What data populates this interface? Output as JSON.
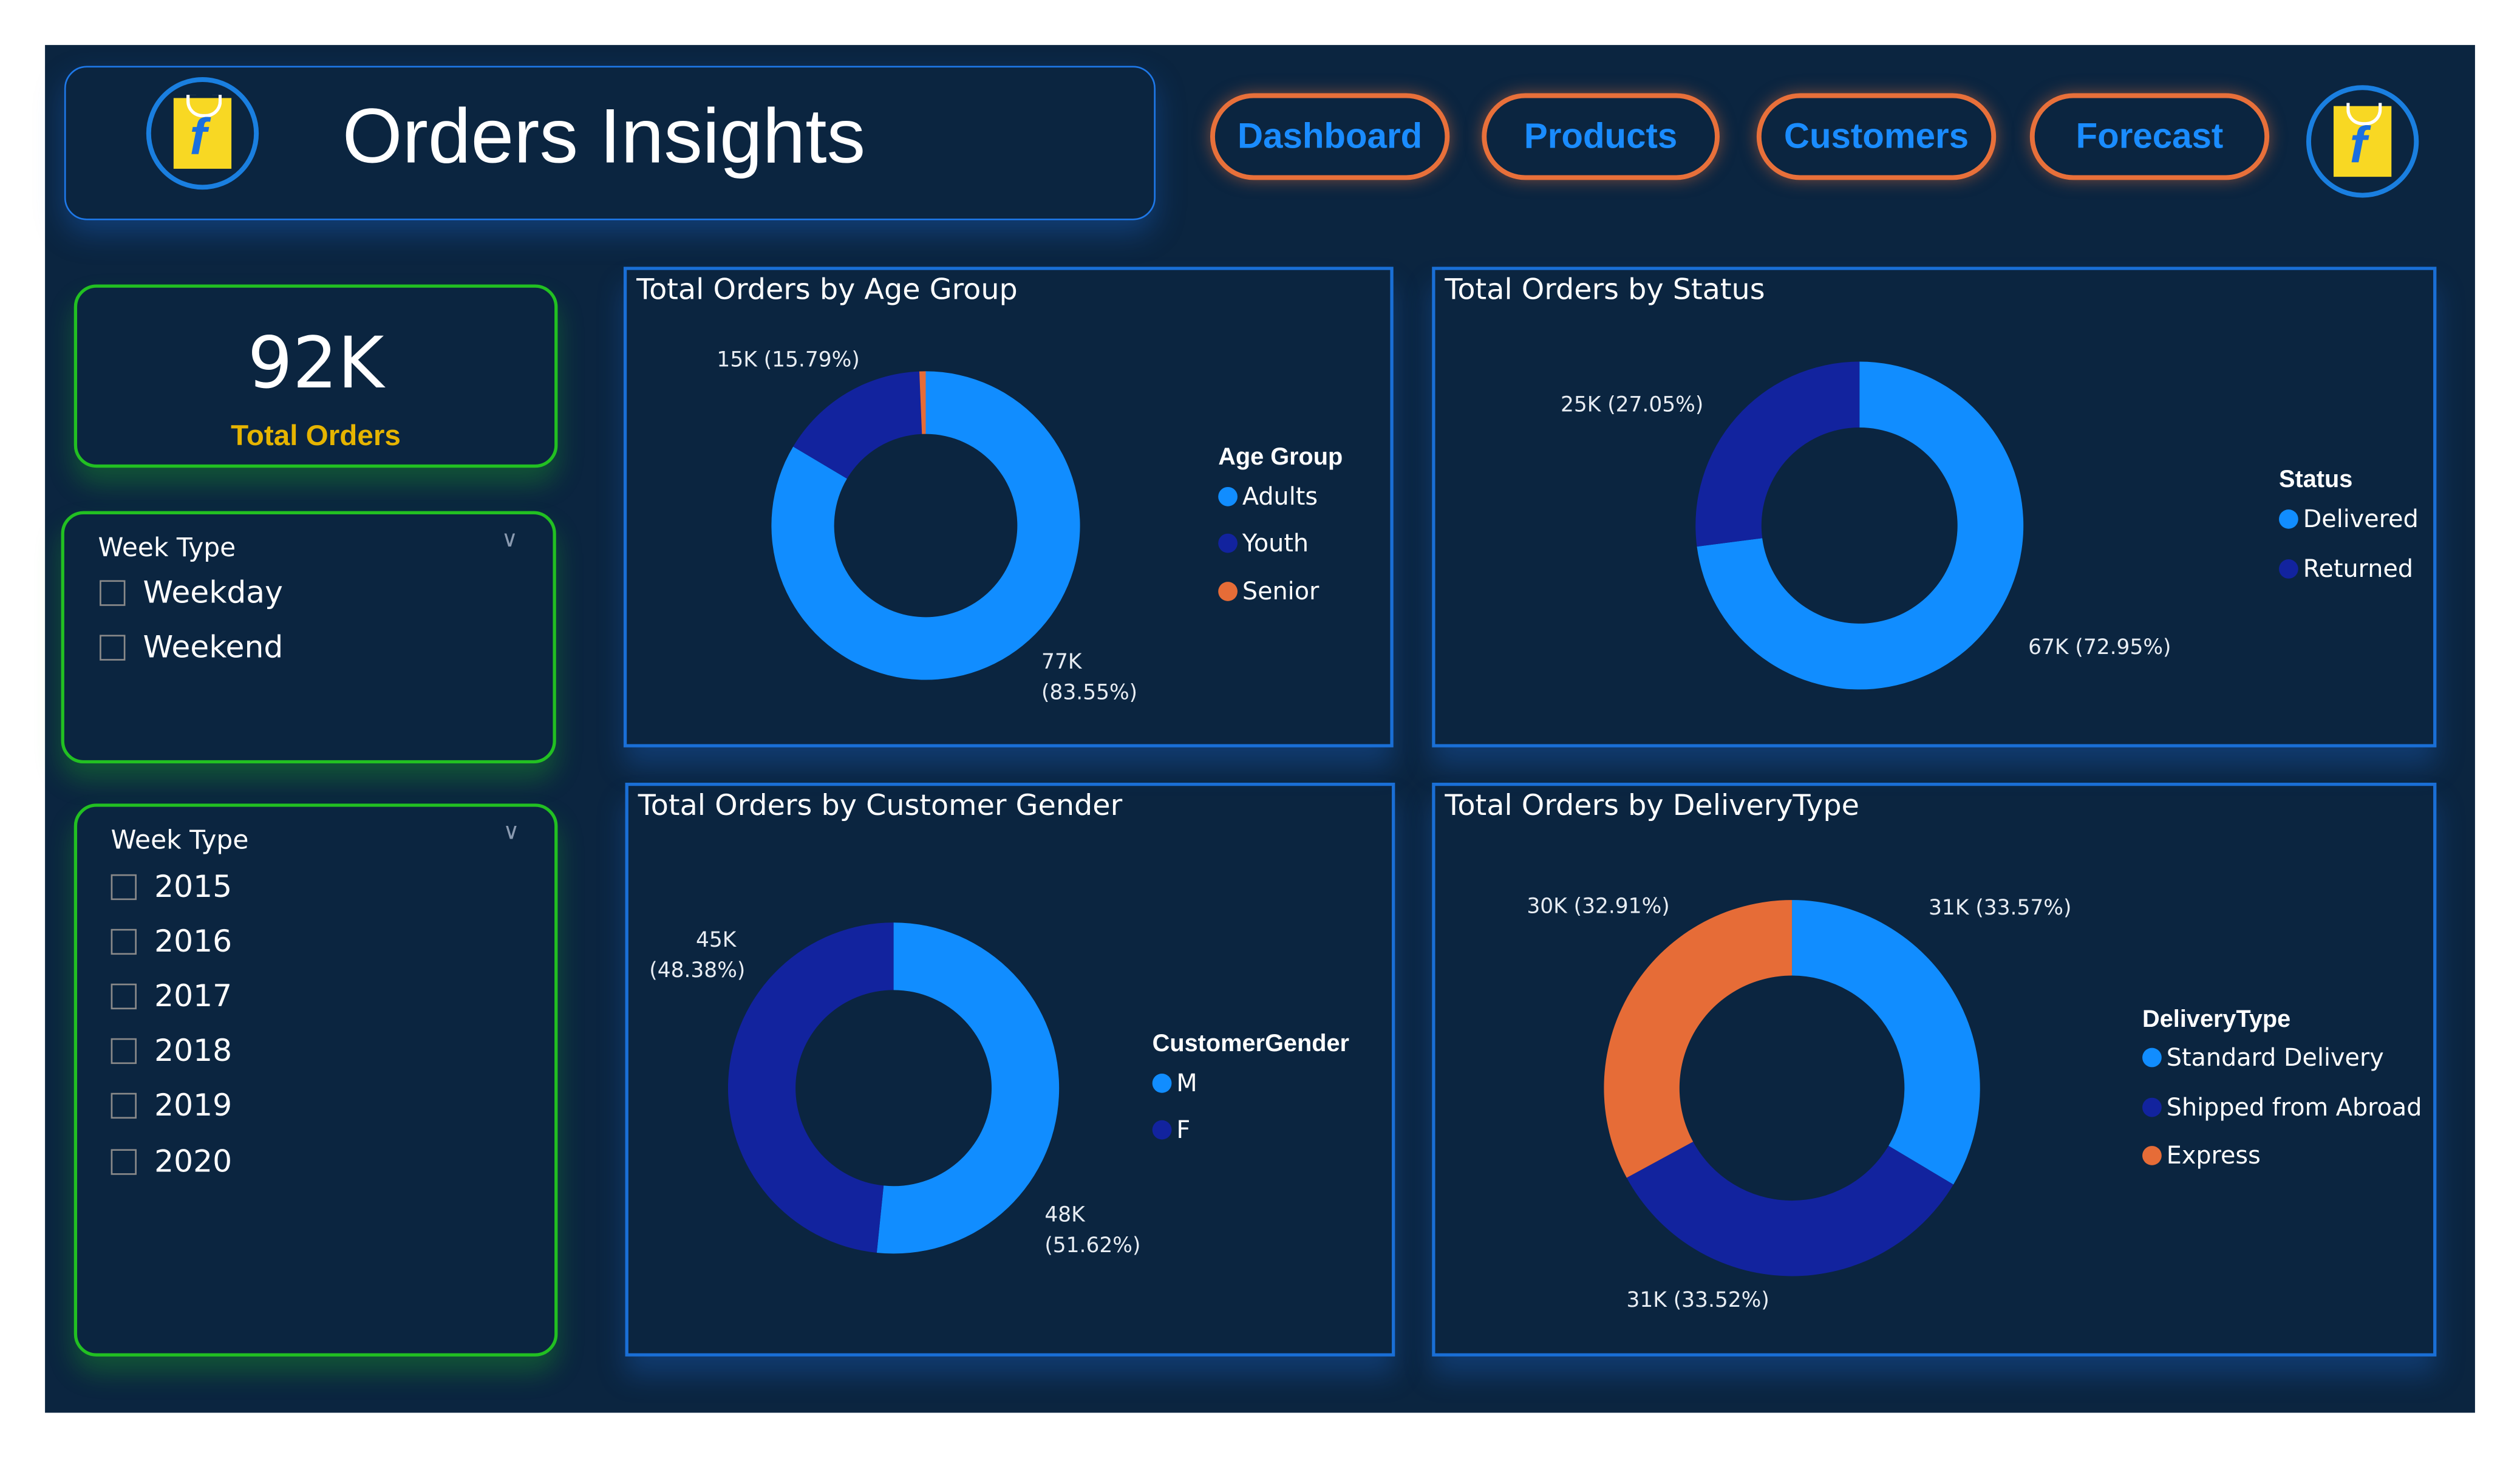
{
  "header": {
    "title": "Orders Insights",
    "logo": "flipkart-logo"
  },
  "nav": [
    {
      "label": "Dashboard"
    },
    {
      "label": "Products"
    },
    {
      "label": "Customers"
    },
    {
      "label": "Forecast"
    }
  ],
  "kpi": {
    "value": "92K",
    "label": "Total Orders"
  },
  "slicer_week": {
    "title": "Week Type",
    "items": [
      "Weekday",
      "Weekend"
    ]
  },
  "slicer_year": {
    "title": "Week Type",
    "items": [
      "2015",
      "2016",
      "2017",
      "2018",
      "2019",
      "2020"
    ]
  },
  "colors": {
    "blue": "#118dff",
    "navy": "#12239e",
    "orange": "#e66c37",
    "panel_bg": "#0b2540",
    "accent_green": "#22c022",
    "nav_border": "#e8703a",
    "kpi_label": "#e6b400"
  },
  "chart_data": [
    {
      "type": "pie",
      "title": "Total Orders by Age Group",
      "legend_title": "Age Group",
      "legend": "right",
      "categories": [
        "Adults",
        "Youth",
        "Senior"
      ],
      "values": [
        83.55,
        15.79,
        0.66
      ],
      "colors": [
        "#118dff",
        "#12239e",
        "#e66c37"
      ],
      "labels": {
        "adults": "77K",
        "adults_pct": "(83.55%)",
        "youth": "15K (15.79%)"
      }
    },
    {
      "type": "pie",
      "title": "Total Orders by Status",
      "legend_title": "Status",
      "legend": "right",
      "categories": [
        "Delivered",
        "Returned"
      ],
      "values": [
        72.95,
        27.05
      ],
      "colors": [
        "#118dff",
        "#12239e"
      ],
      "labels": {
        "delivered": "67K (72.95%)",
        "returned": "25K (27.05%)"
      }
    },
    {
      "type": "pie",
      "title": "Total Orders by Customer Gender",
      "legend_title": "CustomerGender",
      "legend": "right",
      "categories": [
        "M",
        "F"
      ],
      "values": [
        51.62,
        48.38
      ],
      "colors": [
        "#118dff",
        "#12239e"
      ],
      "labels": {
        "m": "48K",
        "m_pct": "(51.62%)",
        "f": "45K",
        "f_pct": "(48.38%)"
      }
    },
    {
      "type": "pie",
      "title": "Total Orders by DeliveryType",
      "legend_title": "DeliveryType",
      "legend": "right",
      "categories": [
        "Standard Delivery",
        "Shipped from Abroad",
        "Express"
      ],
      "values": [
        33.57,
        33.52,
        32.91
      ],
      "colors": [
        "#118dff",
        "#12239e",
        "#e66c37"
      ],
      "labels": {
        "standard": "31K (33.57%)",
        "abroad": "31K (33.52%)",
        "express": "30K (32.91%)"
      }
    }
  ]
}
